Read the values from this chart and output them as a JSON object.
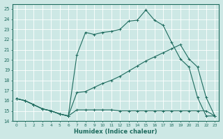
{
  "xlabel": "Humidex (Indice chaleur)",
  "bg_color": "#cde8e5",
  "line_color": "#1e6b5e",
  "grid_color": "#b0d4d0",
  "xlim": [
    -0.5,
    23.5
  ],
  "ylim": [
    14,
    25.5
  ],
  "yticks": [
    14,
    15,
    16,
    17,
    18,
    19,
    20,
    21,
    22,
    23,
    24,
    25
  ],
  "xticks": [
    0,
    1,
    2,
    3,
    4,
    5,
    6,
    7,
    8,
    9,
    10,
    11,
    12,
    13,
    14,
    15,
    16,
    17,
    18,
    19,
    20,
    21,
    22,
    23
  ],
  "line1_x": [
    0,
    1,
    2,
    3,
    4,
    5,
    6,
    7,
    8,
    9,
    10,
    11,
    12,
    13,
    14,
    15,
    16,
    17,
    18,
    19,
    20,
    21,
    22,
    23
  ],
  "line1_y": [
    16.2,
    16.0,
    15.6,
    15.2,
    15.0,
    14.7,
    14.5,
    15.1,
    15.1,
    15.1,
    15.1,
    15.1,
    15.0,
    15.0,
    15.0,
    15.0,
    15.0,
    15.0,
    15.0,
    15.0,
    15.0,
    15.0,
    15.0,
    14.5
  ],
  "line2_x": [
    0,
    1,
    2,
    3,
    4,
    5,
    6,
    7,
    8,
    9,
    10,
    11,
    12,
    13,
    14,
    15,
    16,
    17,
    18,
    19,
    20,
    21,
    22,
    23
  ],
  "line2_y": [
    16.2,
    16.0,
    15.6,
    15.2,
    15.0,
    14.7,
    14.5,
    16.8,
    16.9,
    17.3,
    17.7,
    18.0,
    18.4,
    18.9,
    19.4,
    19.9,
    20.3,
    20.7,
    21.1,
    21.5,
    20.1,
    19.3,
    16.3,
    14.5
  ],
  "line3_x": [
    0,
    1,
    2,
    3,
    4,
    5,
    6,
    7,
    8,
    9,
    10,
    11,
    12,
    13,
    14,
    15,
    16,
    17,
    18,
    19,
    20,
    21,
    22,
    23
  ],
  "line3_y": [
    16.2,
    16.0,
    15.6,
    15.2,
    15.0,
    14.7,
    14.5,
    20.5,
    22.7,
    22.5,
    22.7,
    22.8,
    23.0,
    23.8,
    23.9,
    24.9,
    23.9,
    23.4,
    21.7,
    20.1,
    19.3,
    16.3,
    14.5,
    14.5
  ]
}
